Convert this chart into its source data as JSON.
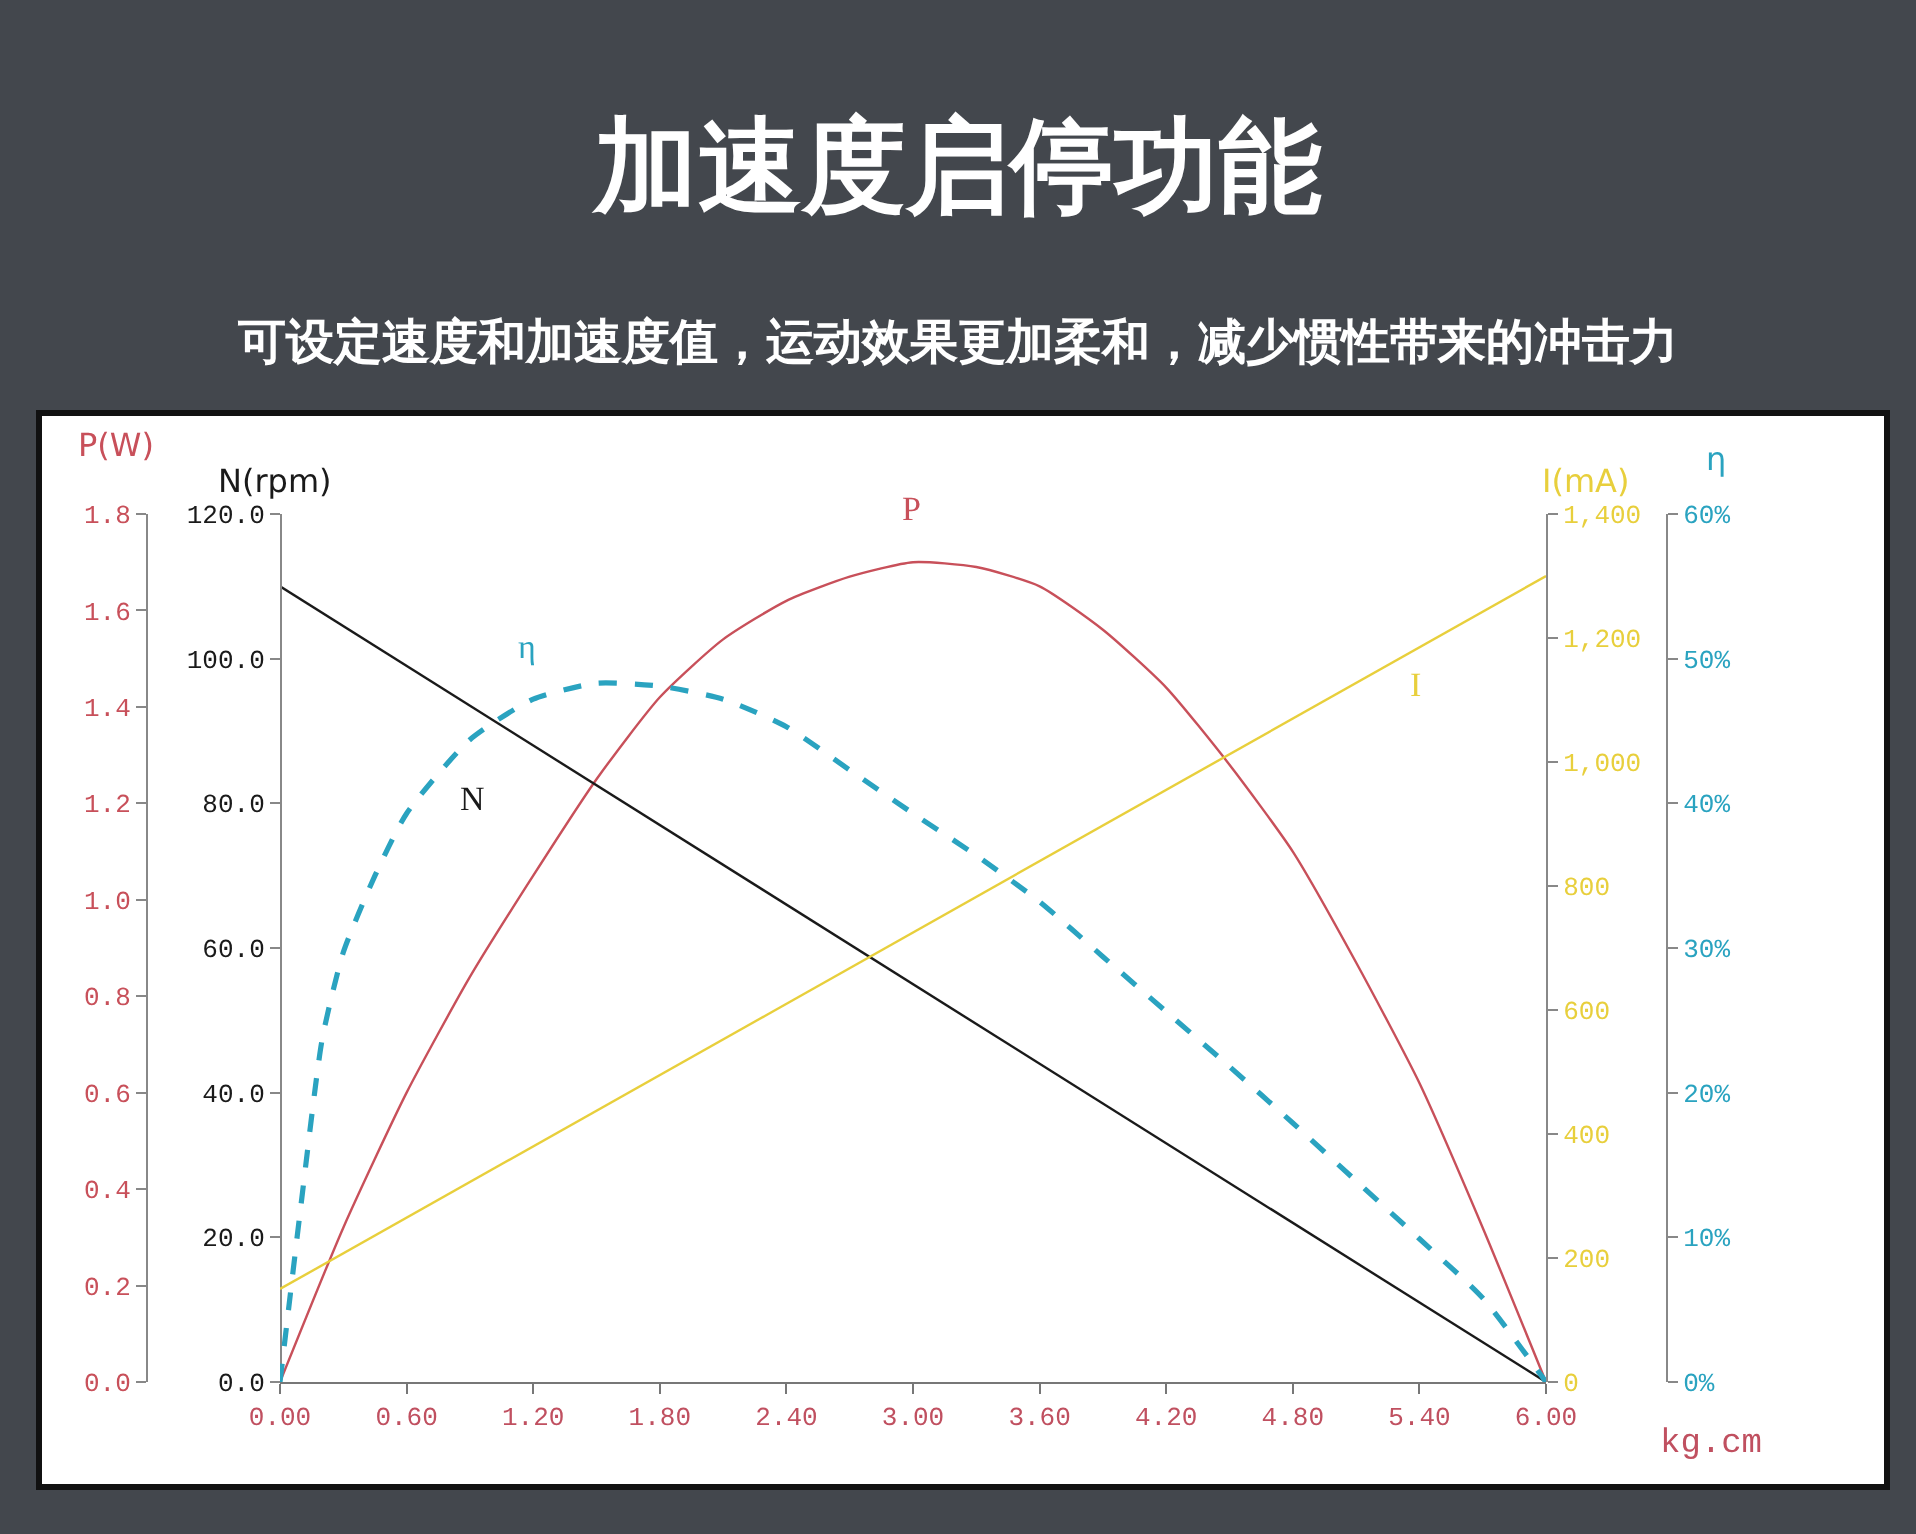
{
  "chart_data": [
    {
      "type": "line",
      "title": "加速度启停功能",
      "subtitle": "可设定速度和加速度值，运动效果更加柔和，减少惯性带来的冲击力",
      "xlabel": "kg.cm",
      "ylabel": "P(W)",
      "y2label": "N(rpm)",
      "x": [
        0,
        0.3,
        0.6,
        0.9,
        1.2,
        1.5,
        1.8,
        2.1,
        2.4,
        2.7,
        3.0,
        3.3,
        3.6,
        3.9,
        4.2,
        4.5,
        4.8,
        5.1,
        5.4,
        5.7,
        6.0
      ],
      "xlim": [
        0,
        6
      ],
      "xticks": [
        {
          "value": 0,
          "label": "0.00"
        },
        {
          "value": 0.6,
          "label": "0.60"
        },
        {
          "value": 1.2,
          "label": "1.20"
        },
        {
          "value": 1.8,
          "label": "1.80"
        },
        {
          "value": 2.4,
          "label": "2.40"
        },
        {
          "value": 3,
          "label": "3.00"
        },
        {
          "value": 3.6,
          "label": "3.60"
        },
        {
          "value": 4.2,
          "label": "4.20"
        },
        {
          "value": 4.8,
          "label": "4.80"
        },
        {
          "value": 5.4,
          "label": "5.40"
        },
        {
          "value": 6,
          "label": "6.00"
        }
      ],
      "ylim": [
        0,
        1.8
      ],
      "yticks": [
        {
          "value": 0,
          "label": "0.0"
        },
        {
          "value": 0.2,
          "label": "0.2"
        },
        {
          "value": 0.4,
          "label": "0.4"
        },
        {
          "value": 0.6,
          "label": "0.6"
        },
        {
          "value": 0.8,
          "label": "0.8"
        },
        {
          "value": 1,
          "label": "1.0"
        },
        {
          "value": 1.2,
          "label": "1.2"
        },
        {
          "value": 1.4,
          "label": "1.4"
        },
        {
          "value": 1.6,
          "label": "1.6"
        },
        {
          "value": 1.8,
          "label": "1.8"
        }
      ],
      "y2lim": [
        0,
        120
      ],
      "y2ticks": [
        {
          "value": 0,
          "label": "0.0"
        },
        {
          "value": 20,
          "label": "20.0"
        },
        {
          "value": 40,
          "label": "40.0"
        },
        {
          "value": 60,
          "label": "60.0"
        },
        {
          "value": 80,
          "label": "80.0"
        },
        {
          "value": 100,
          "label": "100.0"
        },
        {
          "value": 120,
          "label": "120.0"
        }
      ],
      "series": [
        {
          "color": "#c8505a",
          "line_style": "solid",
          "values": [
            0,
            0.32,
            0.6,
            0.84,
            1.05,
            1.25,
            1.42,
            1.54,
            1.62,
            1.67,
            1.7,
            1.69,
            1.65,
            1.56,
            1.44,
            1.28,
            1.1,
            0.87,
            0.62,
            0.32,
            0
          ]
        },
        {
          "axis": "y2",
          "color": "#1a1a1a",
          "line_style": "solid",
          "x": [
            0,
            6
          ],
          "values": [
            110,
            0
          ]
        }
      ],
      "annotations": [
        "P",
        "N"
      ]
    },
    {
      "type": "line",
      "tick_labels": "y",
      "ylabel": "I(mA)",
      "y2label": "η",
      "xlim": [
        0,
        6
      ],
      "ylim": [
        0,
        1400
      ],
      "yticks": [
        0,
        200,
        400,
        600,
        800,
        {
          "value": 1000,
          "label": "1,000"
        },
        {
          "value": 1200,
          "label": "1,200"
        },
        {
          "value": 1400,
          "label": "1,400"
        }
      ],
      "y2lim": [
        0,
        60
      ],
      "y2ticks": [
        {
          "value": 0,
          "label": "0%"
        },
        {
          "value": 10,
          "label": "10%"
        },
        {
          "value": 20,
          "label": "20%"
        },
        {
          "value": 30,
          "label": "30%"
        },
        {
          "value": 40,
          "label": "40%"
        },
        {
          "value": 50,
          "label": "50%"
        },
        {
          "value": 60,
          "label": "60%"
        }
      ],
      "series": [
        {
          "color": "#e8cf3c",
          "line_style": "solid",
          "x": [
            0,
            6
          ],
          "values": [
            150,
            1300
          ]
        },
        {
          "axis": "y2",
          "color": "#2aa3c0",
          "line_style": "dashed",
          "x": [
            0,
            0.1,
            0.2,
            0.3,
            0.45,
            0.6,
            0.9,
            1.2,
            1.5,
            1.8,
            2.1,
            2.4,
            2.7,
            3.0,
            3.3,
            3.6,
            3.9,
            4.2,
            4.5,
            4.8,
            5.1,
            5.4,
            5.7,
            6.0
          ],
          "values": [
            0,
            12.3,
            23.7,
            29.7,
            35,
            39.3,
            44.4,
            47.2,
            48.3,
            48.1,
            47.2,
            45.3,
            42.3,
            39.3,
            36.4,
            33.2,
            29.4,
            25.6,
            21.8,
            17.9,
            13.9,
            9.9,
            5.8,
            0
          ]
        }
      ],
      "annotations": [
        "I",
        "η"
      ]
    }
  ]
}
